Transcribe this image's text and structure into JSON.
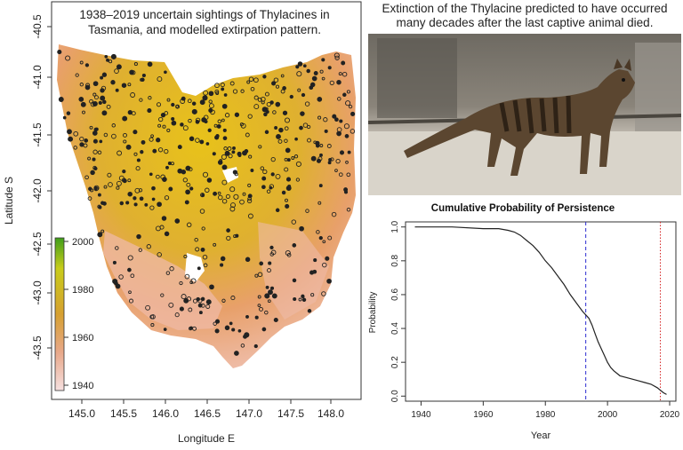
{
  "map": {
    "title_line1": "1938–2019 uncertain sightings of Thylacines in",
    "title_line2": "Tasmania, and modelled extirpation pattern.",
    "xlabel": "Longitude E",
    "ylabel": "Latitude S",
    "x_ticks": [
      "145.0",
      "145.5",
      "146.0",
      "146.5",
      "147.0",
      "147.5",
      "148.0"
    ],
    "y_ticks": [
      "-40.5",
      "-41.0",
      "-41.5",
      "-42.0",
      "-42.5",
      "-43.0",
      "-43.5"
    ],
    "legend_ticks": [
      "2000",
      "1980",
      "1960",
      "1940"
    ],
    "colors": {
      "high": "#e8c21a",
      "mid": "#d9a040",
      "low": "#f0c2b4",
      "legend_top": "#3f9e1a"
    }
  },
  "photo": {
    "caption_line1": "Extinction of the Thylacine predicted to have occurred",
    "caption_line2": "many decades after the last captive animal died."
  },
  "chart_data": {
    "type": "line",
    "title": "Cumulative Probability of Persistence",
    "xlabel": "Year",
    "ylabel": "Probability",
    "xlim": [
      1935,
      2022
    ],
    "ylim": [
      -0.03,
      1.03
    ],
    "x_ticks": [
      1940,
      1960,
      1980,
      2000,
      2020
    ],
    "y_ticks": [
      0.0,
      0.2,
      0.4,
      0.6,
      0.8,
      1.0
    ],
    "series": [
      {
        "x": [
          1938,
          1950,
          1960,
          1965,
          1968,
          1970,
          1972,
          1974,
          1976,
          1978,
          1980,
          1982,
          1984,
          1986,
          1988,
          1990,
          1992,
          1993,
          1994,
          1995,
          1996,
          1997,
          1998,
          1999,
          2000,
          2001,
          2002,
          2004,
          2006,
          2008,
          2010,
          2012,
          2014,
          2016,
          2018,
          2019
        ],
        "y": [
          1.0,
          1.0,
          0.99,
          0.99,
          0.98,
          0.97,
          0.95,
          0.92,
          0.89,
          0.85,
          0.8,
          0.76,
          0.71,
          0.66,
          0.6,
          0.55,
          0.5,
          0.48,
          0.46,
          0.42,
          0.37,
          0.32,
          0.28,
          0.24,
          0.2,
          0.17,
          0.15,
          0.12,
          0.11,
          0.1,
          0.09,
          0.08,
          0.07,
          0.05,
          0.02,
          0.01
        ]
      }
    ],
    "vlines": [
      {
        "x": 1993,
        "color": "#2a2ad0",
        "style": "dashed"
      },
      {
        "x": 2017,
        "color": "#d42020",
        "style": "dotted"
      }
    ]
  }
}
